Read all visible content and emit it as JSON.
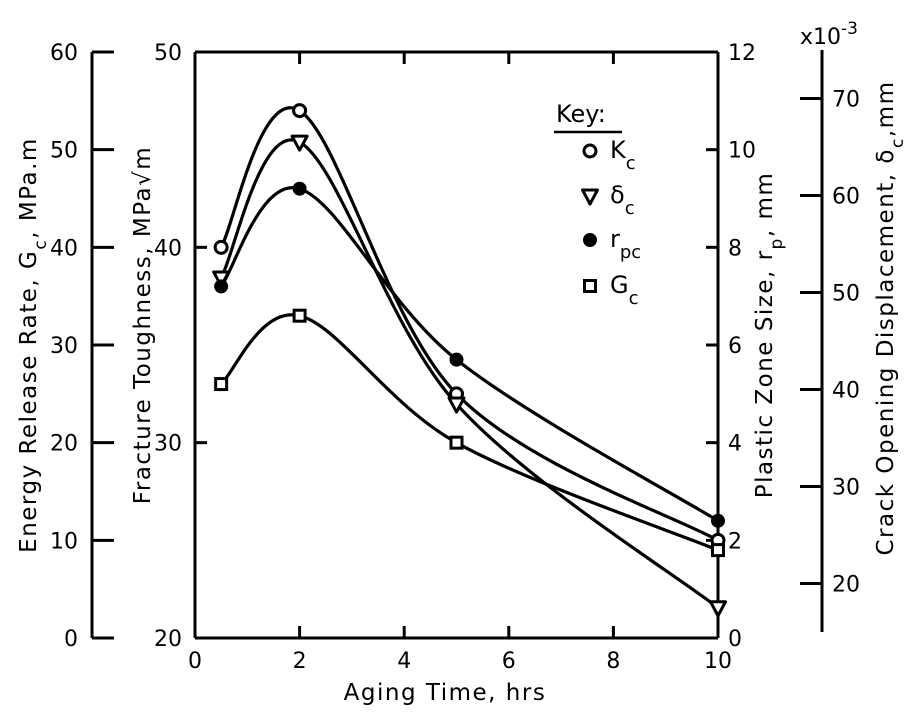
{
  "chart_data": {
    "type": "line",
    "xlabel": "Aging  Time, hrs",
    "xlim": [
      0,
      10
    ],
    "x_ticks": [
      "0",
      "2",
      "4",
      "6",
      "8",
      "10"
    ],
    "axes": [
      {
        "id": "Gc",
        "label": "Energy Release Rate, G",
        "sub": "c",
        "unit": ", MPa.m",
        "lim": [
          0,
          60
        ],
        "ticks": [
          "0",
          "10",
          "20",
          "30",
          "40",
          "50",
          "60"
        ]
      },
      {
        "id": "Kc",
        "label": "Fracture  Toughness, MPa",
        "unit": "√m",
        "lim": [
          20,
          50
        ],
        "ticks": [
          "20",
          "30",
          "40",
          "50"
        ]
      },
      {
        "id": "rp",
        "label": "Plastic Zone Size, r",
        "sub": "p",
        "unit": ", mm",
        "lim": [
          0,
          12
        ],
        "ticks": [
          "0",
          "2",
          "4",
          "6",
          "8",
          "10",
          "12"
        ]
      },
      {
        "id": "dc",
        "label": "Crack Opening Displacement, δ",
        "sub": "c",
        "unit": ",mm",
        "lim": [
          15,
          75
        ],
        "ticks": [
          "20",
          "30",
          "40",
          "50",
          "60",
          "70"
        ],
        "multiplier": "x10",
        "multiplier_exp": "-3"
      }
    ],
    "legend": {
      "title": "Key:",
      "position": "top-right",
      "entries": [
        {
          "marker": "open-circle",
          "label": "K",
          "sub": "c"
        },
        {
          "marker": "open-triangle-down",
          "label": "δ",
          "sub": "c"
        },
        {
          "marker": "filled-circle",
          "label": "r",
          "sub": "pc"
        },
        {
          "marker": "open-square",
          "label": "G",
          "sub": "c"
        }
      ]
    },
    "series": [
      {
        "id": "Kc",
        "axis": "Kc",
        "marker": "open-circle",
        "x": [
          0.5,
          2,
          5,
          10
        ],
        "y": [
          40,
          47,
          32.5,
          25
        ]
      },
      {
        "id": "dc",
        "axis": "dc",
        "marker": "open-triangle-down",
        "x": [
          0.5,
          2,
          5,
          10
        ],
        "y": [
          51.5,
          65.5,
          38.5,
          17.5
        ]
      },
      {
        "id": "rp",
        "axis": "rp",
        "marker": "filled-circle",
        "x": [
          0.5,
          2,
          5,
          10
        ],
        "y": [
          7.2,
          9.2,
          5.7,
          2.4
        ]
      },
      {
        "id": "Gc",
        "axis": "Gc",
        "marker": "open-square",
        "x": [
          0.5,
          2,
          5,
          10
        ],
        "y": [
          26,
          33,
          20,
          9
        ]
      }
    ]
  }
}
